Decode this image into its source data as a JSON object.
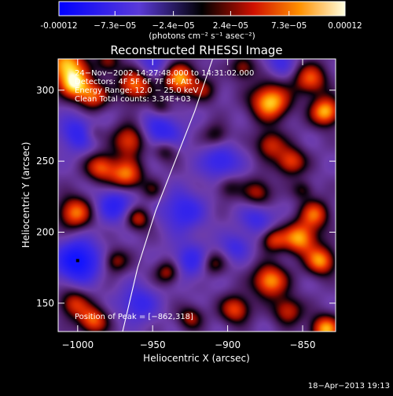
{
  "colorbar": {
    "tick_labels": [
      "-0.00012",
      "−7.3e−05",
      "−2.4e−05",
      "2.4e−05",
      "7.3e−05",
      "0.00012"
    ],
    "tick_values": [
      -0.00012,
      -7.3e-05,
      -2.4e-05,
      2.4e-05,
      7.3e-05,
      0.00012
    ],
    "unit_label": "(photons cm⁻² s⁻¹ asec⁻²)",
    "range": [
      -0.00012,
      0.00012
    ]
  },
  "chart_data": {
    "type": "heatmap",
    "title": "Reconstructed RHESSI Image",
    "xlabel": "Heliocentric X (arcsec)",
    "ylabel": "Heliocentric Y (arcsec)",
    "xlim": [
      -1013,
      -828
    ],
    "ylim": [
      130,
      322
    ],
    "x_ticks": [
      -1000,
      -950,
      -900,
      -850
    ],
    "y_ticks": [
      150,
      200,
      250,
      300
    ],
    "x_tick_labels": [
      "−1000",
      "−950",
      "−900",
      "−850"
    ],
    "y_tick_labels": [
      "150",
      "200",
      "250",
      "300"
    ],
    "annotations": [
      "24−Nov−2002 14:27:48.000 to 14:31:02.000",
      "Detectors: 4F 5F 6F 7F 8F, Att 0",
      "Energy Range: 12.0 − 25.0 keV",
      "Clean    Total counts: 3.34E+03"
    ],
    "peak_label": "Position of Peak = [−862,318]",
    "peak": [
      -862,
      318
    ],
    "limb_line": [
      [
        -970,
        130
      ],
      [
        -960,
        175
      ],
      [
        -948,
        215
      ],
      [
        -935,
        250
      ],
      [
        -922,
        285
      ],
      [
        -910,
        322
      ]
    ],
    "marker": [
      -1000,
      180
    ],
    "blobs": [
      [
        -1008,
        318,
        0.95,
        9
      ],
      [
        -1002,
        304,
        0.85,
        7
      ],
      [
        -990,
        296,
        0.7,
        7
      ],
      [
        -962,
        304,
        0.8,
        8
      ],
      [
        -932,
        308,
        0.9,
        8
      ],
      [
        -872,
        292,
        1.0,
        9
      ],
      [
        -845,
        308,
        0.7,
        8
      ],
      [
        -835,
        285,
        0.95,
        7
      ],
      [
        -965,
        265,
        0.75,
        8
      ],
      [
        -968,
        240,
        0.8,
        8
      ],
      [
        -985,
        246,
        0.7,
        7
      ],
      [
        -942,
        258,
        0.5,
        6
      ],
      [
        -908,
        268,
        0.4,
        6
      ],
      [
        -872,
        262,
        0.6,
        7
      ],
      [
        -858,
        250,
        0.7,
        7
      ],
      [
        -900,
        232,
        0.35,
        6
      ],
      [
        -880,
        228,
        0.55,
        7
      ],
      [
        -1002,
        214,
        0.8,
        8
      ],
      [
        -960,
        210,
        0.6,
        6
      ],
      [
        -842,
        213,
        0.7,
        7
      ],
      [
        -852,
        196,
        0.9,
        8
      ],
      [
        -870,
        195,
        0.6,
        6
      ],
      [
        -838,
        180,
        0.85,
        7
      ],
      [
        -872,
        166,
        0.9,
        8
      ],
      [
        -975,
        180,
        0.5,
        6
      ],
      [
        -940,
        172,
        0.55,
        6
      ],
      [
        -910,
        178,
        0.45,
        6
      ],
      [
        -1003,
        150,
        0.6,
        7
      ],
      [
        -990,
        138,
        0.75,
        7
      ],
      [
        -895,
        146,
        0.7,
        7
      ],
      [
        -860,
        145,
        0.6,
        7
      ],
      [
        -835,
        132,
        0.9,
        7
      ],
      [
        -925,
        140,
        0.5,
        6
      ],
      [
        -950,
        230,
        0.3,
        5
      ],
      [
        -915,
        300,
        0.4,
        6
      ],
      [
        -890,
        316,
        0.5,
        6
      ],
      [
        -980,
        320,
        0.45,
        6
      ],
      [
        -990,
        270,
        0.3,
        5
      ],
      [
        -850,
        230,
        0.35,
        5
      ],
      [
        -945,
        288,
        0.35,
        5
      ]
    ],
    "dips": [
      [
        -1000,
        180,
        -0.95,
        10
      ],
      [
        -975,
        220,
        -0.6,
        9
      ],
      [
        -945,
        270,
        -0.6,
        10
      ],
      [
        -930,
        215,
        -0.55,
        10
      ],
      [
        -905,
        250,
        -0.55,
        9
      ],
      [
        -925,
        180,
        -0.5,
        9
      ],
      [
        -960,
        150,
        -0.5,
        9
      ],
      [
        -880,
        210,
        -0.45,
        8
      ],
      [
        -1000,
        270,
        -0.55,
        9
      ],
      [
        -950,
        320,
        -0.4,
        8
      ],
      [
        -865,
        320,
        -0.4,
        7
      ],
      [
        -895,
        190,
        -0.4,
        7
      ]
    ]
  },
  "footer": {
    "timestamp": "18−Apr−2013 19:13"
  }
}
